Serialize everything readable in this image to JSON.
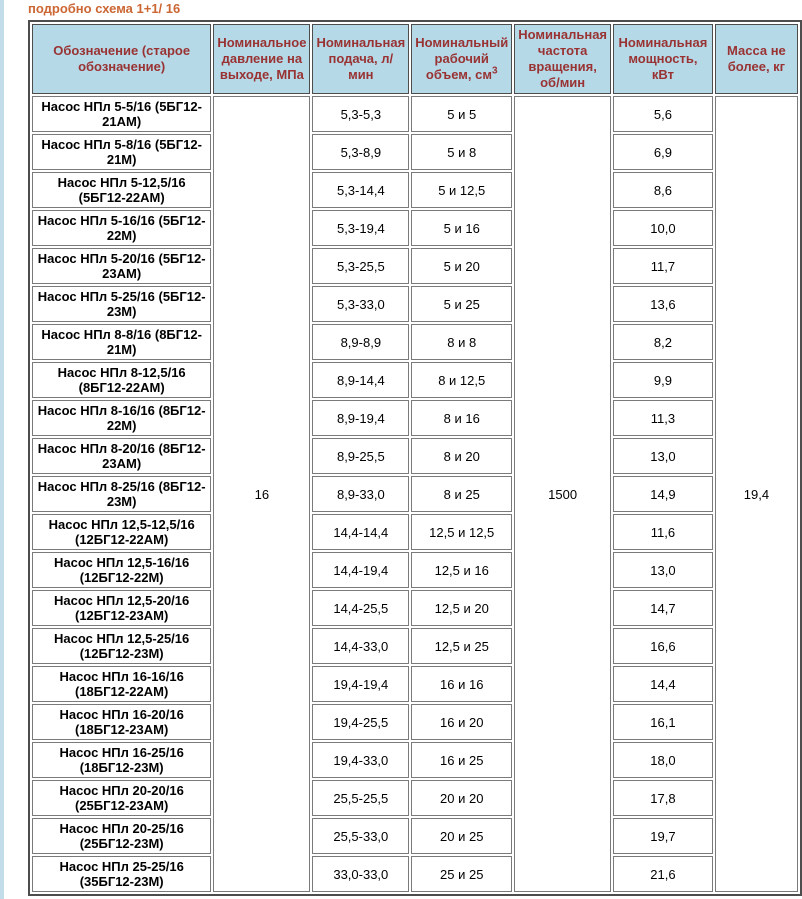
{
  "page": {
    "title": "подробно схема 1+1/ 16",
    "title_color": "#cc6633",
    "left_stripe_color": "#c2dcea"
  },
  "table": {
    "header_bg": "#b5d9e7",
    "header_text_color": "#993333",
    "headers": [
      "Обозначение (старое обозначение)",
      "Номинальное давление на выходе, МПа",
      "Номинальная подача, л/ мин",
      "Номинальный рабочий объем, см",
      "Номинальная частота вращения, об/мин",
      "Номинальная мощность, кВт",
      "Масса не более, кг"
    ],
    "header_volume_sup": "3",
    "merged": {
      "pressure": "16",
      "speed": "1500",
      "mass": "19,4"
    },
    "rows": [
      {
        "name": "Насос НПл 5-5/16 (5БГ12-21АМ)",
        "flow": "5,3-5,3",
        "volume": "5 и 5",
        "power": "5,6"
      },
      {
        "name": "Насос НПл 5-8/16 (5БГ12-21М)",
        "flow": "5,3-8,9",
        "volume": "5 и 8",
        "power": "6,9"
      },
      {
        "name": "Насос НПл 5-12,5/16 (5БГ12-22АМ)",
        "flow": "5,3-14,4",
        "volume": "5 и 12,5",
        "power": "8,6"
      },
      {
        "name": "Насос НПл 5-16/16 (5БГ12-22М)",
        "flow": "5,3-19,4",
        "volume": "5 и 16",
        "power": "10,0"
      },
      {
        "name": "Насос НПл 5-20/16 (5БГ12-23АМ)",
        "flow": "5,3-25,5",
        "volume": "5 и 20",
        "power": "11,7"
      },
      {
        "name": "Насос НПл 5-25/16 (5БГ12-23М)",
        "flow": "5,3-33,0",
        "volume": "5 и 25",
        "power": "13,6"
      },
      {
        "name": "Насос НПл 8-8/16 (8БГ12-21М)",
        "flow": "8,9-8,9",
        "volume": "8 и 8",
        "power": "8,2"
      },
      {
        "name": "Насос НПл 8-12,5/16 (8БГ12-22АМ)",
        "flow": "8,9-14,4",
        "volume": "8 и 12,5",
        "power": "9,9"
      },
      {
        "name": "Насос НПл 8-16/16 (8БГ12-22М)",
        "flow": "8,9-19,4",
        "volume": "8 и 16",
        "power": "11,3"
      },
      {
        "name": "Насос НПл 8-20/16 (8БГ12-23АМ)",
        "flow": "8,9-25,5",
        "volume": "8 и 20",
        "power": "13,0"
      },
      {
        "name": "Насос НПл 8-25/16 (8БГ12-23М)",
        "flow": "8,9-33,0",
        "volume": "8 и 25",
        "power": "14,9"
      },
      {
        "name": "Насос НПл 12,5-12,5/16 (12БГ12-22АМ)",
        "flow": "14,4-14,4",
        "volume": "12,5 и 12,5",
        "power": "11,6"
      },
      {
        "name": "Насос НПл 12,5-16/16 (12БГ12-22М)",
        "flow": "14,4-19,4",
        "volume": "12,5 и 16",
        "power": "13,0"
      },
      {
        "name": "Насос НПл 12,5-20/16 (12БГ12-23АМ)",
        "flow": "14,4-25,5",
        "volume": "12,5 и 20",
        "power": "14,7"
      },
      {
        "name": "Насос НПл 12,5-25/16 (12БГ12-23М)",
        "flow": "14,4-33,0",
        "volume": "12,5 и 25",
        "power": "16,6"
      },
      {
        "name": "Насос НПл 16-16/16 (18БГ12-22АМ)",
        "flow": "19,4-19,4",
        "volume": "16 и 16",
        "power": "14,4"
      },
      {
        "name": "Насос НПл 16-20/16 (18БГ12-23АМ)",
        "flow": "19,4-25,5",
        "volume": "16 и 20",
        "power": "16,1"
      },
      {
        "name": "Насос НПл 16-25/16 (18БГ12-23М)",
        "flow": "19,4-33,0",
        "volume": "16 и 25",
        "power": "18,0"
      },
      {
        "name": "Насос НПл 20-20/16 (25БГ12-23АМ)",
        "flow": "25,5-25,5",
        "volume": "20 и 20",
        "power": "17,8"
      },
      {
        "name": "Насос НПл 20-25/16 (25БГ12-23М)",
        "flow": "25,5-33,0",
        "volume": "20 и 25",
        "power": "19,7"
      },
      {
        "name": "Насос НПл 25-25/16 (35БГ12-23М)",
        "flow": "33,0-33,0",
        "volume": "25 и 25",
        "power": "21,6"
      }
    ]
  }
}
